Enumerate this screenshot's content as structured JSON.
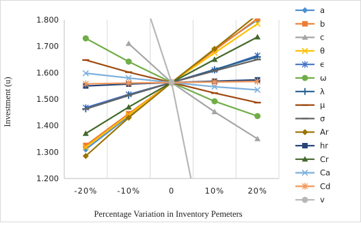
{
  "chart_data": {
    "type": "line",
    "xlabel": "Percentage Variation in Inventory Pemeters",
    "ylabel": "Investment (u)",
    "categories": [
      "-20%",
      "-10%",
      "0",
      "10%",
      "20%"
    ],
    "x": [
      -20,
      -10,
      0,
      10,
      20
    ],
    "xlim": [
      -25,
      25
    ],
    "ylim": [
      1.2,
      1.8
    ],
    "yticks": [
      "1.200",
      "1.300",
      "1.400",
      "1.500",
      "1.600",
      "1.700",
      "1.800"
    ],
    "grid": "vertical",
    "legend_position": "right",
    "series": [
      {
        "name": "a",
        "color": "#4e8fd2",
        "marker": "diamond",
        "x": [
          -20,
          -10,
          0,
          10,
          20
        ],
        "values": [
          1.31,
          1.435,
          1.563,
          1.69,
          1.8
        ]
      },
      {
        "name": "b",
        "color": "#ed7d31",
        "marker": "square",
        "x": [
          -20,
          -10,
          0,
          10,
          20
        ],
        "values": [
          1.325,
          1.445,
          1.563,
          1.685,
          1.805
        ]
      },
      {
        "name": "c",
        "color": "#a5a5a5",
        "marker": "triangle",
        "x": [
          -10,
          0,
          10,
          20
        ],
        "values": [
          1.71,
          1.563,
          1.452,
          1.35
        ]
      },
      {
        "name": "θ",
        "color": "#ffc000",
        "marker": "x",
        "x": [
          -20,
          -10,
          0,
          10,
          20
        ],
        "values": [
          1.318,
          1.44,
          1.563,
          1.675,
          1.785
        ]
      },
      {
        "name": "ϵ",
        "color": "#4472c4",
        "marker": "star",
        "x": [
          -20,
          -10,
          0,
          10,
          20
        ],
        "values": [
          1.468,
          1.518,
          1.563,
          1.61,
          1.665
        ]
      },
      {
        "name": "ω",
        "color": "#70ad47",
        "marker": "circle",
        "x": [
          -20,
          -10,
          0,
          10,
          20
        ],
        "values": [
          1.73,
          1.642,
          1.563,
          1.492,
          1.436
        ]
      },
      {
        "name": "λ",
        "color": "#255e91",
        "marker": "plus",
        "x": [
          -20,
          -10,
          0,
          10,
          20
        ],
        "values": [
          1.463,
          1.514,
          1.563,
          1.612,
          1.66
        ]
      },
      {
        "name": "μ",
        "color": "#9e480e",
        "marker": "dash",
        "x": [
          -20,
          -10,
          0,
          10,
          20
        ],
        "values": [
          1.648,
          1.602,
          1.563,
          1.523,
          1.487
        ]
      },
      {
        "name": "σ",
        "color": "#636363",
        "marker": "dash",
        "x": [
          -20,
          -10,
          0,
          10,
          20
        ],
        "values": [
          1.463,
          1.515,
          1.563,
          1.607,
          1.65
        ]
      },
      {
        "name": "Ar",
        "color": "#997300",
        "marker": "diamond",
        "x": [
          -20,
          -10,
          0,
          10,
          20
        ],
        "values": [
          1.285,
          1.43,
          1.563,
          1.69,
          1.82
        ]
      },
      {
        "name": "hr",
        "color": "#264478",
        "marker": "square",
        "x": [
          -20,
          -10,
          0,
          10,
          20
        ],
        "values": [
          1.55,
          1.557,
          1.563,
          1.568,
          1.573
        ]
      },
      {
        "name": "Cr",
        "color": "#43682b",
        "marker": "triangle",
        "x": [
          -20,
          -10,
          0,
          10,
          20
        ],
        "values": [
          1.37,
          1.47,
          1.563,
          1.65,
          1.735
        ]
      },
      {
        "name": "Ca",
        "color": "#7cafdd",
        "marker": "x",
        "x": [
          -20,
          -10,
          0,
          10,
          20
        ],
        "values": [
          1.598,
          1.58,
          1.563,
          1.547,
          1.535
        ]
      },
      {
        "name": "Cd",
        "color": "#f1975a",
        "marker": "star",
        "x": [
          -20,
          -10,
          0,
          10,
          20
        ],
        "values": [
          1.558,
          1.561,
          1.563,
          1.565,
          1.567
        ]
      },
      {
        "name": "v",
        "color": "#b7b7b7",
        "marker": "circle",
        "x": [
          -5.8,
          0,
          4.5
        ],
        "values": [
          1.85,
          1.563,
          1.2
        ]
      }
    ]
  }
}
